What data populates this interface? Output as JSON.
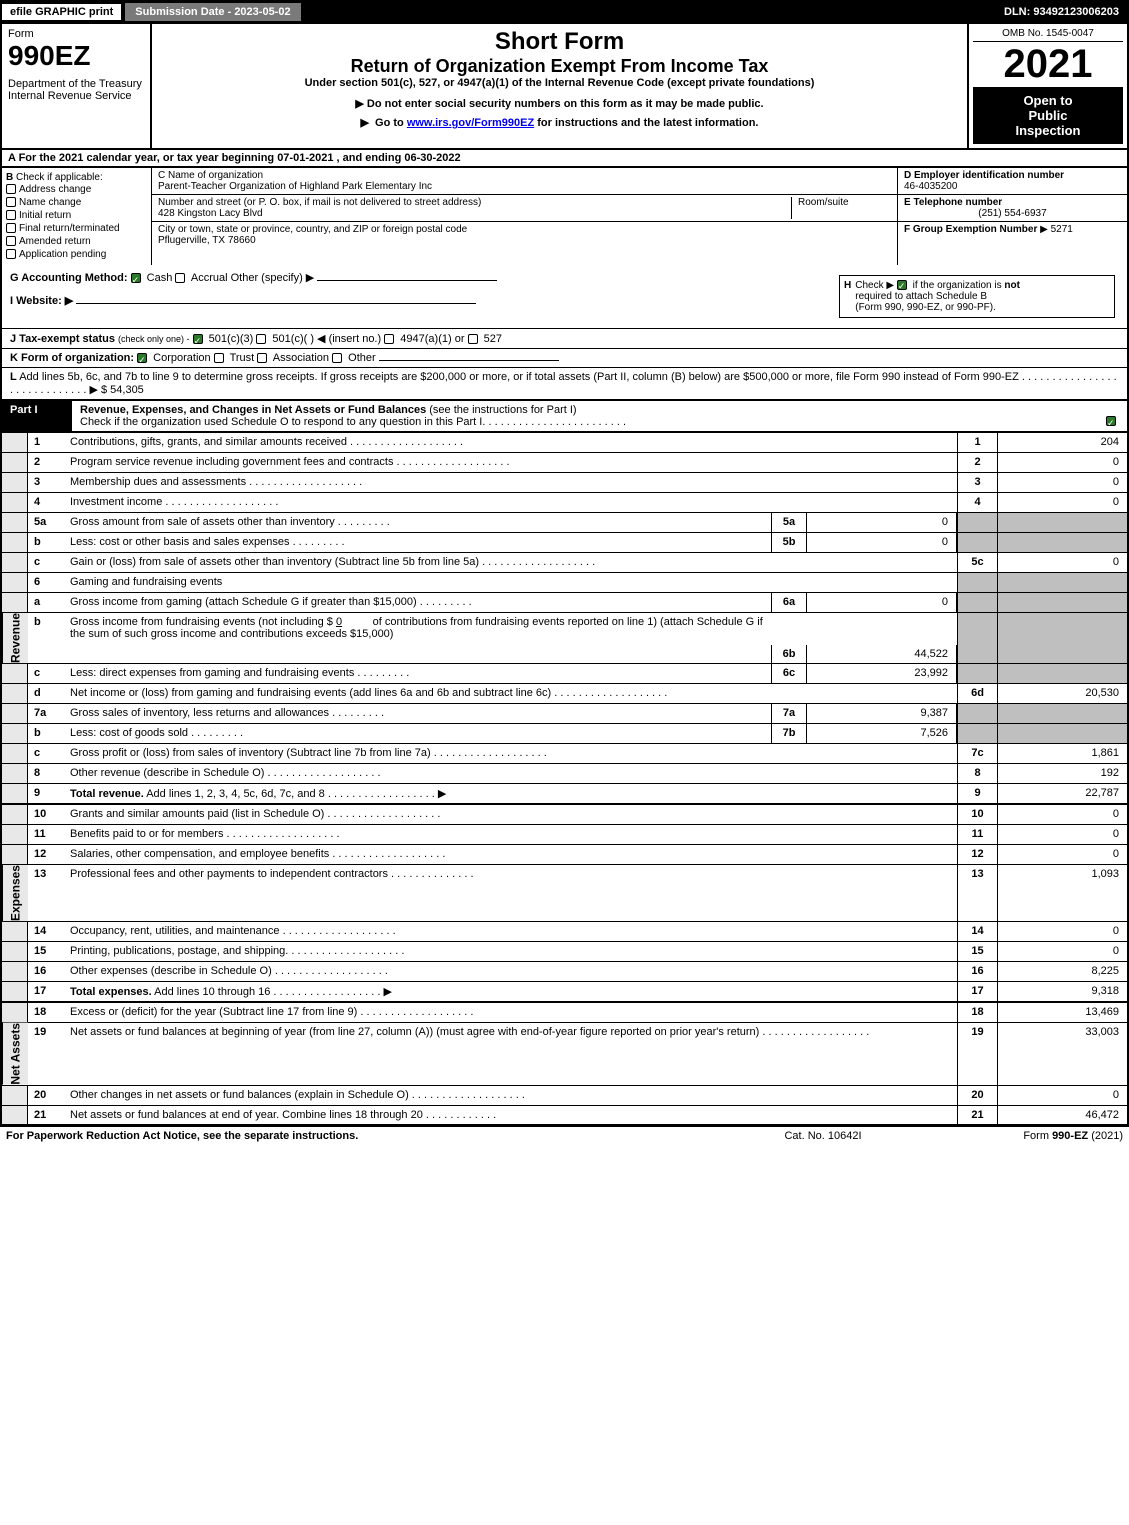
{
  "topbar": {
    "efile": "efile GRAPHIC print",
    "submission": "Submission Date - 2023-05-02",
    "dln": "DLN: 93492123006203"
  },
  "header": {
    "form_label": "Form",
    "form_number": "990EZ",
    "dept": "Department of the Treasury",
    "irs": "Internal Revenue Service",
    "title": "Short Form",
    "subtitle": "Return of Organization Exempt From Income Tax",
    "under": "Under section 501(c), 527, or 4947(a)(1) of the Internal Revenue Code (except private foundations)",
    "note1": "Do not enter social security numbers on this form as it may be made public.",
    "note2_pre": "Go to ",
    "note2_link": "www.irs.gov/Form990EZ",
    "note2_post": " for instructions and the latest information.",
    "omb": "OMB No. 1545-0047",
    "year": "2021",
    "inspection1": "Open to",
    "inspection2": "Public",
    "inspection3": "Inspection"
  },
  "section_a": "A  For the 2021 calendar year, or tax year beginning 07-01-2021 , and ending 06-30-2022",
  "section_b": {
    "label": "B",
    "check_if": "Check if applicable:",
    "items": [
      "Address change",
      "Name change",
      "Initial return",
      "Final return/terminated",
      "Amended return",
      "Application pending"
    ]
  },
  "section_c": {
    "name_label": "C Name of organization",
    "name": "Parent-Teacher Organization of Highland Park Elementary Inc",
    "addr_label": "Number and street (or P. O. box, if mail is not delivered to street address)",
    "addr": "428 Kingston Lacy Blvd",
    "room_label": "Room/suite",
    "city_label": "City or town, state or province, country, and ZIP or foreign postal code",
    "city": "Pflugerville, TX  78660"
  },
  "section_d": {
    "label": "D Employer identification number",
    "value": "46-4035200"
  },
  "section_e": {
    "label": "E Telephone number",
    "value": "(251) 554-6937"
  },
  "section_f": {
    "label": "F Group Exemption Number",
    "arrow": "▶",
    "value": "5271"
  },
  "section_g": {
    "label": "G Accounting Method:",
    "cash": "Cash",
    "accrual": "Accrual",
    "other": "Other (specify)"
  },
  "section_h": {
    "label": "H",
    "text1": "Check ▶",
    "text2": "if the organization is",
    "text3": "not",
    "text4": "required to attach Schedule B",
    "text5": "(Form 990, 990-EZ, or 990-PF)."
  },
  "section_i": {
    "label": "I Website: ▶"
  },
  "section_j": {
    "label": "J Tax-exempt status",
    "note": "(check only one) -",
    "opt1": "501(c)(3)",
    "opt2": "501(c)(  )",
    "insert": "(insert no.)",
    "opt3": "4947(a)(1) or",
    "opt4": "527"
  },
  "section_k": {
    "label": "K Form of organization:",
    "opts": [
      "Corporation",
      "Trust",
      "Association",
      "Other"
    ]
  },
  "section_l": {
    "label": "L",
    "text": "Add lines 5b, 6c, and 7b to line 9 to determine gross receipts. If gross receipts are $200,000 or more, or if total assets (Part II, column (B) below) are $500,000 or more, file Form 990 instead of Form 990-EZ",
    "value": "$ 54,305"
  },
  "part1": {
    "num": "Part I",
    "title": "Revenue, Expenses, and Changes in Net Assets or Fund Balances",
    "note": "(see the instructions for Part I)",
    "check_text": "Check if the organization used Schedule O to respond to any question in this Part I"
  },
  "side_labels": {
    "revenue": "Revenue",
    "expenses": "Expenses",
    "netassets": "Net Assets"
  },
  "lines": {
    "1": {
      "num": "1",
      "text": "Contributions, gifts, grants, and similar amounts received",
      "col": "1",
      "val": "204"
    },
    "2": {
      "num": "2",
      "text": "Program service revenue including government fees and contracts",
      "col": "2",
      "val": "0"
    },
    "3": {
      "num": "3",
      "text": "Membership dues and assessments",
      "col": "3",
      "val": "0"
    },
    "4": {
      "num": "4",
      "text": "Investment income",
      "col": "4",
      "val": "0"
    },
    "5a": {
      "num": "5a",
      "text": "Gross amount from sale of assets other than inventory",
      "sub": "5a",
      "subval": "0"
    },
    "5b": {
      "num": "b",
      "text": "Less: cost or other basis and sales expenses",
      "sub": "5b",
      "subval": "0"
    },
    "5c": {
      "num": "c",
      "text": "Gain or (loss) from sale of assets other than inventory (Subtract line 5b from line 5a)",
      "col": "5c",
      "val": "0"
    },
    "6": {
      "num": "6",
      "text": "Gaming and fundraising events"
    },
    "6a": {
      "num": "a",
      "text": "Gross income from gaming (attach Schedule G if greater than $15,000)",
      "sub": "6a",
      "subval": "0"
    },
    "6b": {
      "num": "b",
      "text1": "Gross income from fundraising events (not including $",
      "amt": "0",
      "text2": "of contributions from fundraising events reported on line 1) (attach Schedule G if the sum of such gross income and contributions exceeds $15,000)",
      "sub": "6b",
      "subval": "44,522"
    },
    "6c": {
      "num": "c",
      "text": "Less: direct expenses from gaming and fundraising events",
      "sub": "6c",
      "subval": "23,992"
    },
    "6d": {
      "num": "d",
      "text": "Net income or (loss) from gaming and fundraising events (add lines 6a and 6b and subtract line 6c)",
      "col": "6d",
      "val": "20,530"
    },
    "7a": {
      "num": "7a",
      "text": "Gross sales of inventory, less returns and allowances",
      "sub": "7a",
      "subval": "9,387"
    },
    "7b": {
      "num": "b",
      "text": "Less: cost of goods sold",
      "sub": "7b",
      "subval": "7,526"
    },
    "7c": {
      "num": "c",
      "text": "Gross profit or (loss) from sales of inventory (Subtract line 7b from line 7a)",
      "col": "7c",
      "val": "1,861"
    },
    "8": {
      "num": "8",
      "text": "Other revenue (describe in Schedule O)",
      "col": "8",
      "val": "192"
    },
    "9": {
      "num": "9",
      "text": "Total revenue. Add lines 1, 2, 3, 4, 5c, 6d, 7c, and 8",
      "col": "9",
      "val": "22,787"
    },
    "10": {
      "num": "10",
      "text": "Grants and similar amounts paid (list in Schedule O)",
      "col": "10",
      "val": "0"
    },
    "11": {
      "num": "11",
      "text": "Benefits paid to or for members",
      "col": "11",
      "val": "0"
    },
    "12": {
      "num": "12",
      "text": "Salaries, other compensation, and employee benefits",
      "col": "12",
      "val": "0"
    },
    "13": {
      "num": "13",
      "text": "Professional fees and other payments to independent contractors",
      "col": "13",
      "val": "1,093"
    },
    "14": {
      "num": "14",
      "text": "Occupancy, rent, utilities, and maintenance",
      "col": "14",
      "val": "0"
    },
    "15": {
      "num": "15",
      "text": "Printing, publications, postage, and shipping.",
      "col": "15",
      "val": "0"
    },
    "16": {
      "num": "16",
      "text": "Other expenses (describe in Schedule O)",
      "col": "16",
      "val": "8,225"
    },
    "17": {
      "num": "17",
      "text": "Total expenses. Add lines 10 through 16",
      "col": "17",
      "val": "9,318"
    },
    "18": {
      "num": "18",
      "text": "Excess or (deficit) for the year (Subtract line 17 from line 9)",
      "col": "18",
      "val": "13,469"
    },
    "19": {
      "num": "19",
      "text": "Net assets or fund balances at beginning of year (from line 27, column (A)) (must agree with end-of-year figure reported on prior year's return)",
      "col": "19",
      "val": "33,003"
    },
    "20": {
      "num": "20",
      "text": "Other changes in net assets or fund balances (explain in Schedule O)",
      "col": "20",
      "val": "0"
    },
    "21": {
      "num": "21",
      "text": "Net assets or fund balances at end of year. Combine lines 18 through 20",
      "col": "21",
      "val": "46,472"
    }
  },
  "footer": {
    "left": "For Paperwork Reduction Act Notice, see the separate instructions.",
    "mid": "Cat. No. 10642I",
    "right_pre": "Form ",
    "right_bold": "990-EZ",
    "right_post": " (2021)"
  }
}
